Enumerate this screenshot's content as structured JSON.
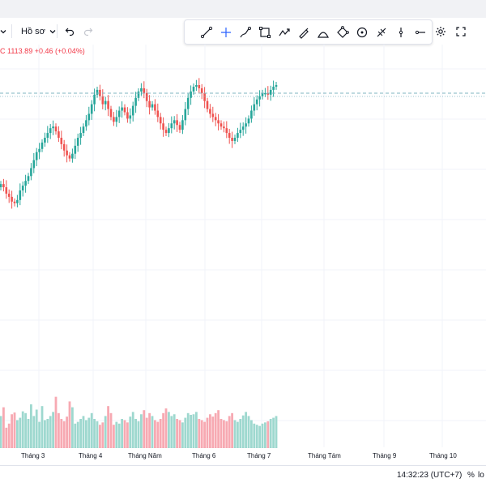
{
  "toolbar": {
    "profile_label": "Hồ sơ",
    "tools": [
      {
        "name": "trend-line-icon"
      },
      {
        "name": "crosshair-icon"
      },
      {
        "name": "brush-icon"
      },
      {
        "name": "rectangle-icon"
      },
      {
        "name": "path-icon"
      },
      {
        "name": "pen-icon"
      },
      {
        "name": "arc-icon"
      },
      {
        "name": "polygon-icon"
      },
      {
        "name": "circle-icon"
      },
      {
        "name": "ruler-icon"
      },
      {
        "name": "vertical-line-icon"
      },
      {
        "name": "horizontal-ray-icon"
      }
    ],
    "right_icons": [
      "settings-icon",
      "fullscreen-icon"
    ]
  },
  "legend": {
    "text": "C 1113.89  +0.46 (+0.04%)"
  },
  "colors": {
    "up": "#26a69a",
    "down": "#ef5350",
    "up_volume": "#9ed8cf",
    "down_volume": "#f7a9b2",
    "price_line": "#7fb4c0"
  },
  "chart_data": {
    "type": "candlestick",
    "close_last": 1113.89,
    "change": 0.46,
    "change_percent": 0.04,
    "x_tick_labels": [
      "Tháng 3",
      "Tháng 4",
      "Tháng Năm",
      "Tháng 6",
      "Tháng 7",
      "Tháng Tám",
      "Tháng 9",
      "Tháng 10"
    ],
    "price_path": [
      0.62,
      0.64,
      0.68,
      0.7,
      0.73,
      0.74,
      0.72,
      0.66,
      0.63,
      0.6,
      0.57,
      0.52,
      0.47,
      0.42,
      0.4,
      0.36,
      0.33,
      0.3,
      0.27,
      0.26,
      0.29,
      0.33,
      0.37,
      0.41,
      0.44,
      0.46,
      0.43,
      0.38,
      0.33,
      0.3,
      0.26,
      0.22,
      0.18,
      0.12,
      0.06,
      0.03,
      0.07,
      0.12,
      0.1,
      0.15,
      0.2,
      0.23,
      0.2,
      0.16,
      0.14,
      0.17,
      0.21,
      0.19,
      0.13,
      0.08,
      0.04,
      0.02,
      0.05,
      0.1,
      0.14,
      0.12,
      0.16,
      0.2,
      0.24,
      0.28,
      0.3,
      0.27,
      0.24,
      0.22,
      0.25,
      0.28,
      0.22,
      0.15,
      0.08,
      0.04,
      0.01,
      0.0,
      0.02,
      0.05,
      0.1,
      0.15,
      0.18,
      0.2,
      0.22,
      0.24,
      0.26,
      0.27,
      0.3,
      0.33,
      0.35,
      0.33,
      0.3,
      0.28,
      0.26,
      0.24,
      0.21,
      0.16,
      0.12,
      0.09,
      0.07,
      0.05,
      0.05,
      0.06,
      0.03,
      0.01,
      0.0
    ],
    "volumes": [
      0.55,
      0.7,
      0.35,
      0.42,
      0.58,
      0.61,
      0.48,
      0.52,
      0.63,
      0.6,
      0.5,
      0.75,
      0.55,
      0.66,
      0.45,
      0.72,
      0.48,
      0.5,
      0.55,
      0.62,
      0.88,
      0.6,
      0.5,
      0.46,
      0.54,
      0.8,
      0.7,
      0.42,
      0.45,
      0.5,
      0.55,
      0.48,
      0.52,
      0.6,
      0.5,
      0.46,
      0.4,
      0.44,
      0.55,
      0.72,
      0.6,
      0.4,
      0.45,
      0.42,
      0.5,
      0.48,
      0.44,
      0.54,
      0.62,
      0.5,
      0.46,
      0.58,
      0.65,
      0.52,
      0.6,
      0.55,
      0.48,
      0.45,
      0.5,
      0.6,
      0.68,
      0.62,
      0.55,
      0.58,
      0.5,
      0.48,
      0.44,
      0.52,
      0.6,
      0.57,
      0.58,
      0.62,
      0.5,
      0.48,
      0.45,
      0.52,
      0.58,
      0.54,
      0.6,
      0.65,
      0.5,
      0.48,
      0.46,
      0.55,
      0.6,
      0.48,
      0.45,
      0.5,
      0.56,
      0.62,
      0.55,
      0.48,
      0.42,
      0.4,
      0.38,
      0.42,
      0.44,
      0.46,
      0.5,
      0.52,
      0.55
    ]
  },
  "status": {
    "time": "14:32:23 (UTC+7)",
    "percent_label": "%",
    "log_label": "lo"
  }
}
